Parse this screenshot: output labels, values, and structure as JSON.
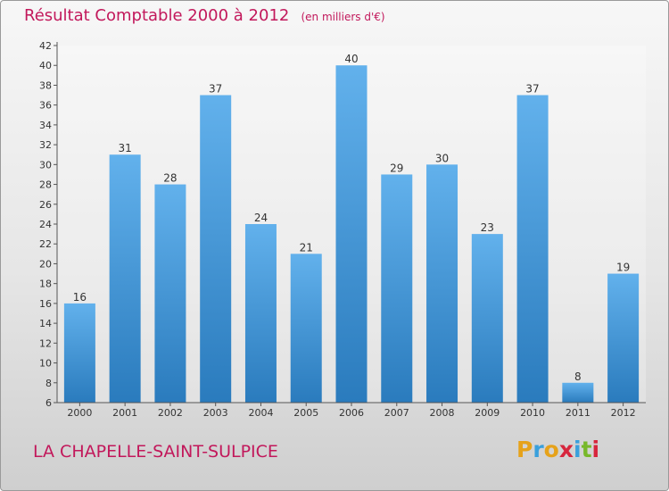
{
  "header": {
    "title": "Résultat Comptable 2000 à 2012",
    "unit": "(en milliers d'€)"
  },
  "footer": {
    "commune": "LA CHAPELLE-SAINT-SULPICE",
    "logo_text": "Proxiti"
  },
  "colors": {
    "accent": "#c2185b",
    "bar_light": "#62b1ec",
    "bar_dark": "#2a7bbd",
    "logo_letters": [
      "#e6a21a",
      "#3aa0dc",
      "#e6a21a",
      "#d7263d",
      "#3aa0dc",
      "#78b82a",
      "#d7263d"
    ]
  },
  "chart_data": {
    "type": "bar",
    "title": "Résultat Comptable 2000 à 2012",
    "subtitle": "(en milliers d'€)",
    "categories": [
      "2000",
      "2001",
      "2002",
      "2003",
      "2004",
      "2005",
      "2006",
      "2007",
      "2008",
      "2009",
      "2010",
      "2011",
      "2012"
    ],
    "values": [
      16,
      31,
      28,
      37,
      24,
      21,
      40,
      29,
      30,
      23,
      37,
      8,
      19
    ],
    "ylim": [
      6,
      42
    ],
    "yticks": [
      6,
      8,
      10,
      12,
      14,
      16,
      18,
      20,
      22,
      24,
      26,
      28,
      30,
      32,
      34,
      36,
      38,
      40,
      42
    ],
    "grid": false,
    "xlabel": "",
    "ylabel": ""
  }
}
